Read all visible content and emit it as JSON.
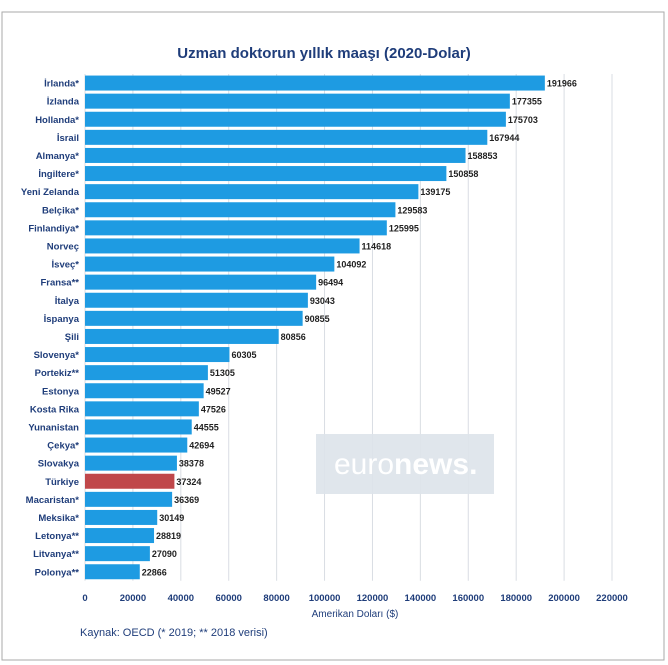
{
  "source_note": "Kaynak: OECD (* 2019; ** 2018 verisi)",
  "watermark": {
    "light": "euro",
    "bold": "news",
    "dot": "."
  },
  "colors": {
    "bar": "#1e9be2",
    "highlight": "#c0474a",
    "grid": "#d9dde3",
    "text": "#1f3d7a",
    "frame": "#aaaaaa",
    "watermark_bg": "#dde3ea"
  },
  "chart_data": {
    "type": "bar",
    "orientation": "horizontal",
    "title": "Uzman doktorun yıllık maaşı (2020-Dolar)",
    "xlabel": "Amerikan Doları ($)",
    "ylabel": "",
    "xlim": [
      0,
      220000
    ],
    "xticks": [
      "0",
      "20000",
      "40000",
      "60000",
      "80000",
      "100000",
      "120000",
      "140000",
      "160000",
      "180000",
      "200000",
      "220000"
    ],
    "grid": "vertical",
    "highlight_category": "Türkiye",
    "categories": [
      "İrlanda*",
      "İzlanda",
      "Hollanda*",
      "İsrail",
      "Almanya*",
      "İngiltere*",
      "Yeni Zelanda",
      "Belçika*",
      "Finlandiya*",
      "Norveç",
      "İsveç*",
      "Fransa**",
      "İtalya",
      "İspanya",
      "Şili",
      "Slovenya*",
      "Portekiz**",
      "Estonya",
      "Kosta Rika",
      "Yunanistan",
      "Çekya*",
      "Slovakya",
      "Türkiye",
      "Macaristan*",
      "Meksika*",
      "Letonya**",
      "Litvanya**",
      "Polonya**"
    ],
    "values": [
      191966,
      177355,
      175703,
      167944,
      158853,
      150858,
      139175,
      129583,
      125995,
      114618,
      104092,
      96494,
      93043,
      90855,
      80856,
      60305,
      51305,
      49527,
      47526,
      44555,
      42694,
      38378,
      37324,
      36369,
      30149,
      28819,
      27090,
      22866
    ]
  }
}
